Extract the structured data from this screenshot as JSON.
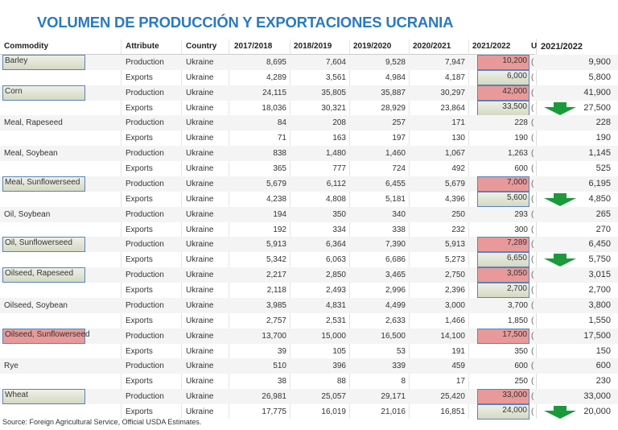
{
  "title": "VOLUMEN DE PRODUCCIÓN Y EXPORTACIONES UCRANIA",
  "headers": {
    "commodity": "Commodity",
    "attribute": "Attribute",
    "country": "Country",
    "y1": "2017/2018",
    "y2": "2018/2019",
    "y3": "2019/2020",
    "y4": "2020/2021",
    "y5": "2021/2022",
    "cut": "U",
    "panel": "2021/2022"
  },
  "colors": {
    "title": "#2a7ac0",
    "red_highlight": "#e89a9a",
    "green_highlight": "#d4d9c4",
    "arrow": "#1a9a3a"
  },
  "rows": [
    {
      "commodity": "Barley",
      "attribute": "Production",
      "country": "Ukraine",
      "v": [
        "8,695",
        "7,604",
        "9,528",
        "7,947",
        "10,200"
      ],
      "paren": "(",
      "panel": "9,900",
      "ch": "green",
      "vh": "red",
      "arrow": false
    },
    {
      "commodity": "",
      "attribute": "Exports",
      "country": "Ukraine",
      "v": [
        "4,289",
        "3,561",
        "4,984",
        "4,187",
        "6,000"
      ],
      "paren": "(",
      "panel": "5,800",
      "ch": "",
      "vh": "green",
      "arrow": false
    },
    {
      "commodity": "Corn",
      "attribute": "Production",
      "country": "Ukraine",
      "v": [
        "24,115",
        "35,805",
        "35,887",
        "30,297",
        "42,000"
      ],
      "paren": "(",
      "panel": "41,900",
      "ch": "green",
      "vh": "red",
      "arrow": false
    },
    {
      "commodity": "",
      "attribute": "Exports",
      "country": "Ukraine",
      "v": [
        "18,036",
        "30,321",
        "28,929",
        "23,864",
        "33,500"
      ],
      "paren": "(",
      "panel": "27,500",
      "ch": "",
      "vh": "green",
      "arrow": true
    },
    {
      "commodity": "Meal, Rapeseed",
      "attribute": "Production",
      "country": "Ukraine",
      "v": [
        "84",
        "208",
        "257",
        "171",
        "228"
      ],
      "paren": "(",
      "panel": "228",
      "ch": "",
      "vh": "",
      "arrow": false
    },
    {
      "commodity": "",
      "attribute": "Exports",
      "country": "Ukraine",
      "v": [
        "71",
        "163",
        "197",
        "130",
        "190"
      ],
      "paren": "(",
      "panel": "190",
      "ch": "",
      "vh": "",
      "arrow": false
    },
    {
      "commodity": "Meal, Soybean",
      "attribute": "Production",
      "country": "Ukraine",
      "v": [
        "838",
        "1,480",
        "1,460",
        "1,067",
        "1,263"
      ],
      "paren": "(",
      "panel": "1,145",
      "ch": "",
      "vh": "",
      "arrow": false
    },
    {
      "commodity": "",
      "attribute": "Exports",
      "country": "Ukraine",
      "v": [
        "365",
        "777",
        "724",
        "492",
        "600"
      ],
      "paren": "(",
      "panel": "525",
      "ch": "",
      "vh": "",
      "arrow": false
    },
    {
      "commodity": "Meal, Sunflowerseed",
      "attribute": "Production",
      "country": "Ukraine",
      "v": [
        "5,679",
        "6,112",
        "6,455",
        "5,679",
        "7,000"
      ],
      "paren": "(",
      "panel": "6,195",
      "ch": "green",
      "vh": "red",
      "arrow": false
    },
    {
      "commodity": "",
      "attribute": "Exports",
      "country": "Ukraine",
      "v": [
        "4,238",
        "4,808",
        "5,181",
        "4,396",
        "5,600"
      ],
      "paren": "(",
      "panel": "4,850",
      "ch": "",
      "vh": "green",
      "arrow": true
    },
    {
      "commodity": "Oil, Soybean",
      "attribute": "Production",
      "country": "Ukraine",
      "v": [
        "194",
        "350",
        "340",
        "250",
        "293"
      ],
      "paren": "(",
      "panel": "265",
      "ch": "",
      "vh": "",
      "arrow": false
    },
    {
      "commodity": "",
      "attribute": "Exports",
      "country": "Ukraine",
      "v": [
        "192",
        "334",
        "338",
        "232",
        "300"
      ],
      "paren": "(",
      "panel": "270",
      "ch": "",
      "vh": "",
      "arrow": false
    },
    {
      "commodity": "Oil, Sunflowerseed",
      "attribute": "Production",
      "country": "Ukraine",
      "v": [
        "5,913",
        "6,364",
        "7,390",
        "5,913",
        "7,289"
      ],
      "paren": "(",
      "panel": "6,450",
      "ch": "green",
      "vh": "red",
      "arrow": false
    },
    {
      "commodity": "",
      "attribute": "Exports",
      "country": "Ukraine",
      "v": [
        "5,342",
        "6,063",
        "6,686",
        "5,273",
        "6,650"
      ],
      "paren": "(",
      "panel": "5,750",
      "ch": "",
      "vh": "green",
      "arrow": true
    },
    {
      "commodity": "Oilseed, Rapeseed",
      "attribute": "Production",
      "country": "Ukraine",
      "v": [
        "2,217",
        "2,850",
        "3,465",
        "2,750",
        "3,050"
      ],
      "paren": "(",
      "panel": "3,015",
      "ch": "green",
      "vh": "red",
      "arrow": false
    },
    {
      "commodity": "",
      "attribute": "Exports",
      "country": "Ukraine",
      "v": [
        "2,118",
        "2,493",
        "2,996",
        "2,396",
        "2,700"
      ],
      "paren": "(",
      "panel": "2,700",
      "ch": "",
      "vh": "green",
      "arrow": false
    },
    {
      "commodity": "Oilseed, Soybean",
      "attribute": "Production",
      "country": "Ukraine",
      "v": [
        "3,985",
        "4,831",
        "4,499",
        "3,000",
        "3,700"
      ],
      "paren": "(",
      "panel": "3,800",
      "ch": "",
      "vh": "",
      "arrow": false
    },
    {
      "commodity": "",
      "attribute": "Exports",
      "country": "Ukraine",
      "v": [
        "2,757",
        "2,531",
        "2,633",
        "1,466",
        "1,850"
      ],
      "paren": "(",
      "panel": "1,550",
      "ch": "",
      "vh": "",
      "arrow": false
    },
    {
      "commodity": "Oilseed, Sunflowerseed",
      "attribute": "Production",
      "country": "Ukraine",
      "v": [
        "13,700",
        "15,000",
        "16,500",
        "14,100",
        "17,500"
      ],
      "paren": "(",
      "panel": "17,500",
      "ch": "red",
      "vh": "red",
      "arrow": false
    },
    {
      "commodity": "",
      "attribute": "Exports",
      "country": "Ukraine",
      "v": [
        "39",
        "105",
        "53",
        "191",
        "350"
      ],
      "paren": "(",
      "panel": "150",
      "ch": "",
      "vh": "",
      "arrow": false
    },
    {
      "commodity": "Rye",
      "attribute": "Production",
      "country": "Ukraine",
      "v": [
        "510",
        "396",
        "339",
        "459",
        "600"
      ],
      "paren": "(",
      "panel": "600",
      "ch": "",
      "vh": "",
      "arrow": false
    },
    {
      "commodity": "",
      "attribute": "Exports",
      "country": "Ukraine",
      "v": [
        "38",
        "88",
        "8",
        "17",
        "250"
      ],
      "paren": "(",
      "panel": "230",
      "ch": "",
      "vh": "",
      "arrow": false
    },
    {
      "commodity": "Wheat",
      "attribute": "Production",
      "country": "Ukraine",
      "v": [
        "26,981",
        "25,057",
        "29,171",
        "25,420",
        "33,000"
      ],
      "paren": "(",
      "panel": "33,000",
      "ch": "green",
      "vh": "red",
      "arrow": false
    },
    {
      "commodity": "",
      "attribute": "Exports",
      "country": "Ukraine",
      "v": [
        "17,775",
        "16,019",
        "21,016",
        "16,851",
        "24,000"
      ],
      "paren": "(",
      "panel": "20,000",
      "ch": "",
      "vh": "green",
      "arrow": true
    }
  ],
  "source": "Source: Foreign Agricultural Service, Official USDA Estimates."
}
